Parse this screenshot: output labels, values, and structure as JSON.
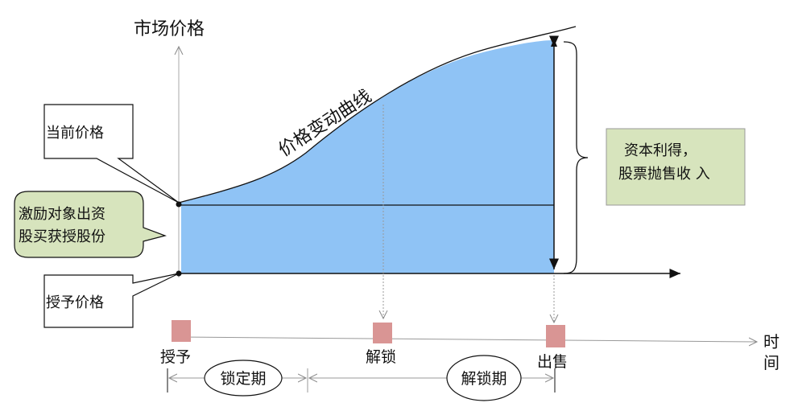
{
  "y_axis_label": "市场价格",
  "x_axis_label_line1": "时",
  "x_axis_label_line2": "间",
  "curve_label": "价格变动曲线",
  "callouts": {
    "current_price": "当前价格",
    "grant_price": "授予价格",
    "purchase_line1": "激励对象出资",
    "purchase_line2": "股买获授股份",
    "gain_line1": "资本利得，",
    "gain_line2": "股票抛售收 入"
  },
  "milestones": [
    "授予",
    "解锁",
    "出售"
  ],
  "periods": [
    "锁定期",
    "解锁期"
  ],
  "colors": {
    "area": "#8fc3f5",
    "milestone": "#d99594",
    "callout_green": "#d7e4bd"
  }
}
